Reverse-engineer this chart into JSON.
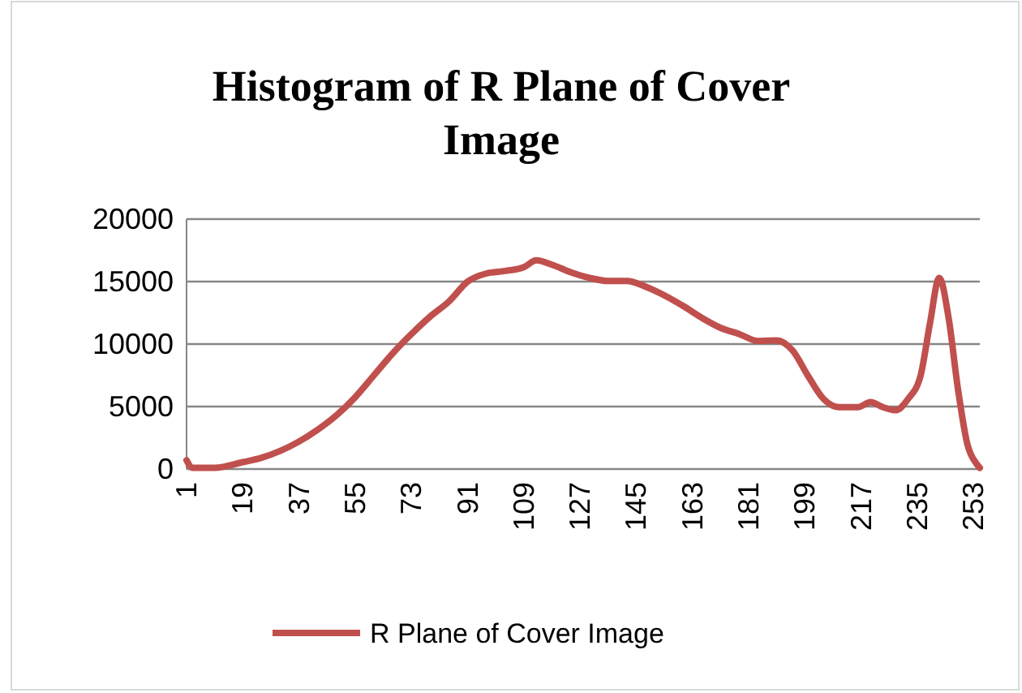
{
  "chart_data": {
    "type": "line",
    "title": "Histogram of R Plane of Cover Image",
    "x": [
      1,
      3,
      10,
      19,
      25,
      31,
      37,
      43,
      49,
      55,
      61,
      67,
      73,
      79,
      85,
      91,
      97,
      103,
      109,
      113,
      118,
      124,
      130,
      136,
      142,
      148,
      154,
      160,
      166,
      172,
      178,
      184,
      190,
      195,
      200,
      205,
      210,
      216,
      220,
      224,
      228,
      232,
      236,
      239,
      242,
      245,
      248,
      251,
      254,
      255
    ],
    "series": [
      {
        "name": "R Plane of Cover Image",
        "color": "#c0504d",
        "values": [
          700,
          100,
          100,
          550,
          900,
          1450,
          2200,
          3150,
          4300,
          5750,
          7500,
          9250,
          10800,
          12200,
          13400,
          15000,
          15650,
          15850,
          16150,
          16700,
          16350,
          15750,
          15300,
          15050,
          15050,
          14600,
          13900,
          13050,
          12100,
          11300,
          10800,
          10250,
          10300,
          9500,
          7450,
          5600,
          4950,
          4950,
          5350,
          4950,
          4700,
          5600,
          7450,
          11600,
          15300,
          12100,
          6400,
          2000,
          400,
          100
        ]
      }
    ],
    "xlim": [
      1,
      255
    ],
    "xticks": [
      1,
      19,
      37,
      55,
      73,
      91,
      109,
      127,
      145,
      163,
      181,
      199,
      217,
      235,
      253
    ],
    "ylim": [
      0,
      20000
    ],
    "yticks": [
      0,
      5000,
      10000,
      15000,
      20000
    ],
    "grid": "y",
    "legend": "bottom",
    "marker": "none",
    "line_style": "solid"
  }
}
